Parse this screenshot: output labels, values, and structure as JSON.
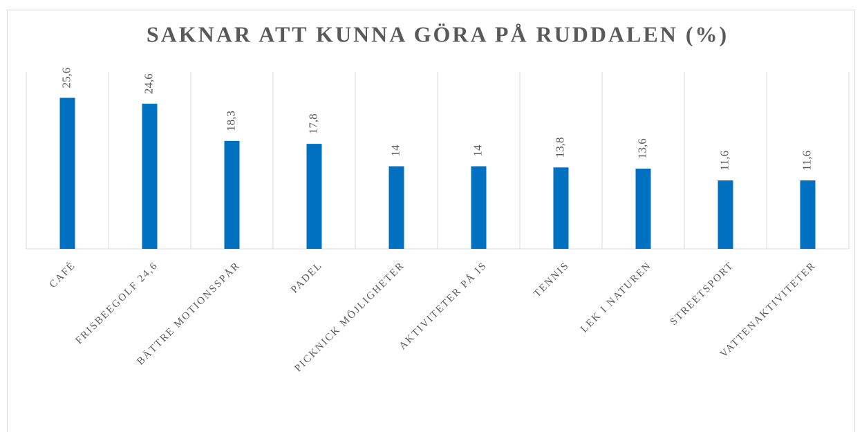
{
  "chart_data": {
    "type": "bar",
    "title": "SAKNAR ATT KUNNA GÖRA PÅ RUDDALEN (%)",
    "categories": [
      "CAFÉ",
      "FRISBEEGOLF 24,6",
      "BÄTTRE MOTIONSSPÅR",
      "PADEL",
      "PICKNICK MÖJLIGHETER",
      "AKTIVITETER PÅ IS",
      "TENNIS",
      "LEK I NATUREN",
      "STREETSPORT",
      "VATTENAKTIVITETER"
    ],
    "values": [
      25.6,
      24.6,
      18.3,
      17.8,
      14,
      14,
      13.8,
      13.6,
      11.6,
      11.6
    ],
    "value_labels": [
      "25,6",
      "24,6",
      "18,3",
      "17,8",
      "14",
      "14",
      "13,8",
      "13,6",
      "11,6",
      "11,6"
    ],
    "color": "#0070c0",
    "ylim": [
      0,
      30
    ],
    "grid": true
  }
}
